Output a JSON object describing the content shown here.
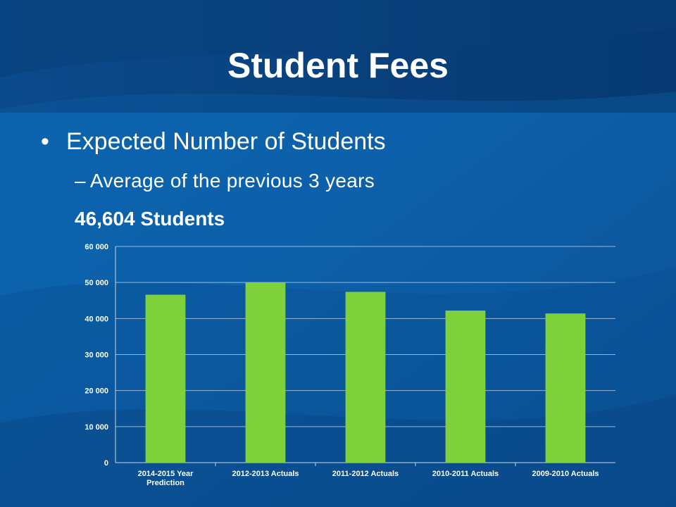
{
  "slide": {
    "title": "Student Fees",
    "bullet": "Expected Number of Students",
    "sub_bullet": "Average of the previous 3 years",
    "highlight": "46,604 Students"
  },
  "colors": {
    "background": "#0a5aa0",
    "header_band": "#063d78",
    "bar": "#7fd13b",
    "gridline": "#c9d6e4",
    "text": "#ffffff"
  },
  "chart_data": {
    "type": "bar",
    "categories": [
      "2014-2015 Year Prediction",
      "2012-2013 Actuals",
      "2011-2012 Actuals",
      "2010-2011 Actuals",
      "2009-2010 Actuals"
    ],
    "category_lines": [
      [
        "2014-2015 Year",
        "Prediction"
      ],
      [
        "2012-2013 Actuals"
      ],
      [
        "2011-2012 Actuals"
      ],
      [
        "2010-2011 Actuals"
      ],
      [
        "2009-2010 Actuals"
      ]
    ],
    "values": [
      46604,
      50000,
      47400,
      42200,
      41400
    ],
    "yticks": [
      0,
      10000,
      20000,
      30000,
      40000,
      50000,
      60000
    ],
    "ytick_labels": [
      "0",
      "10 000",
      "20 000",
      "30 000",
      "40 000",
      "50 000",
      "60 000"
    ],
    "ylim": [
      0,
      60000
    ],
    "grid": true,
    "legend": "none"
  }
}
